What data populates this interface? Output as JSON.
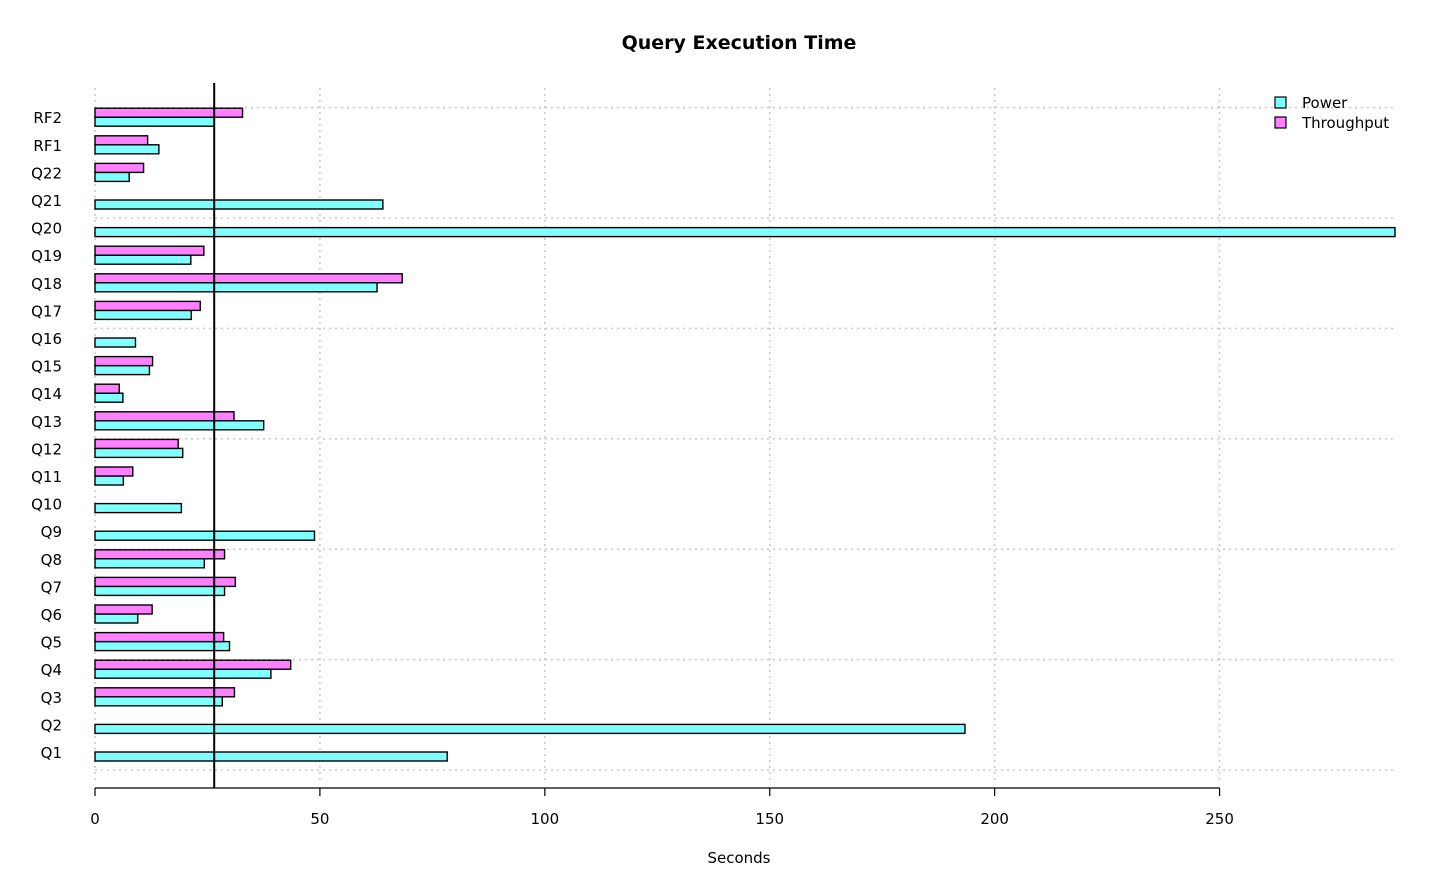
{
  "chart_data": {
    "type": "bar",
    "orientation": "horizontal",
    "title": "Query Execution Time",
    "xlabel": "Seconds",
    "ylabel": "",
    "xlim": [
      0,
      289
    ],
    "x_ticks": [
      0,
      50,
      100,
      150,
      200,
      250
    ],
    "grid": true,
    "legend_position": "top-right",
    "reference_line_x": 26.5,
    "categories": [
      "Q1",
      "Q2",
      "Q3",
      "Q4",
      "Q5",
      "Q6",
      "Q7",
      "Q8",
      "Q9",
      "Q10",
      "Q11",
      "Q12",
      "Q13",
      "Q14",
      "Q15",
      "Q16",
      "Q17",
      "Q18",
      "Q19",
      "Q20",
      "Q21",
      "Q22",
      "RF1",
      "RF2"
    ],
    "series": [
      {
        "name": "Power",
        "color": "#80ffff",
        "values": [
          78.3,
          193.4,
          28.3,
          39.1,
          29.9,
          9.5,
          28.8,
          24.3,
          48.8,
          19.2,
          6.3,
          19.5,
          37.5,
          6.2,
          12.1,
          9.0,
          21.4,
          62.7,
          21.3,
          289.0,
          64.0,
          7.6,
          14.2,
          26.5
        ]
      },
      {
        "name": "Throughput",
        "color": "#ff80ff",
        "values": [
          null,
          null,
          31.0,
          43.5,
          28.6,
          12.7,
          31.2,
          28.8,
          null,
          null,
          8.4,
          18.5,
          30.9,
          5.4,
          12.8,
          null,
          23.4,
          68.3,
          24.2,
          null,
          null,
          10.8,
          11.7,
          32.8
        ]
      }
    ]
  }
}
